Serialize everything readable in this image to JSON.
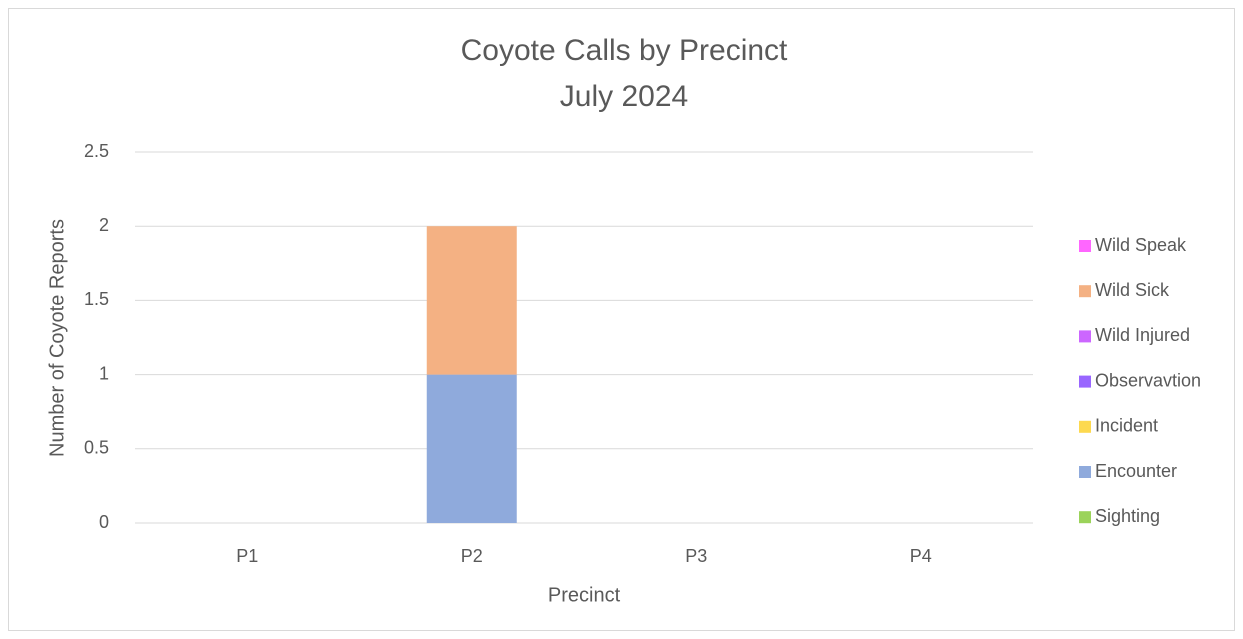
{
  "chart_data": {
    "type": "stacked_bar",
    "title": "Coyote Calls by Precinct",
    "subtitle": "July 2024",
    "x_label": "Precinct",
    "y_label": "Number of Coyote Reports",
    "categories": [
      "P1",
      "P2",
      "P3",
      "P4"
    ],
    "series": [
      {
        "name": "Sighting",
        "color": "#9bd35a",
        "values": [
          0,
          0,
          0,
          0
        ]
      },
      {
        "name": "Encounter",
        "color": "#8faadc",
        "values": [
          0,
          1,
          0,
          0
        ]
      },
      {
        "name": "Incident",
        "color": "#fdd94f",
        "values": [
          0,
          0,
          0,
          0
        ]
      },
      {
        "name": "Observavtion",
        "color": "#9966ff",
        "values": [
          0,
          0,
          0,
          0
        ]
      },
      {
        "name": "Wild Injured",
        "color": "#cc66ff",
        "values": [
          0,
          0,
          0,
          0
        ]
      },
      {
        "name": "Wild Sick",
        "color": "#f4b183",
        "values": [
          0,
          1,
          0,
          0
        ]
      },
      {
        "name": "Wild Speak",
        "color": "#ff66ff",
        "values": [
          0,
          0,
          0,
          0
        ]
      }
    ],
    "ylim": [
      0,
      2.5
    ],
    "yticks": [
      0,
      0.5,
      1,
      1.5,
      2,
      2.5
    ],
    "grid": true,
    "legend": "right"
  }
}
